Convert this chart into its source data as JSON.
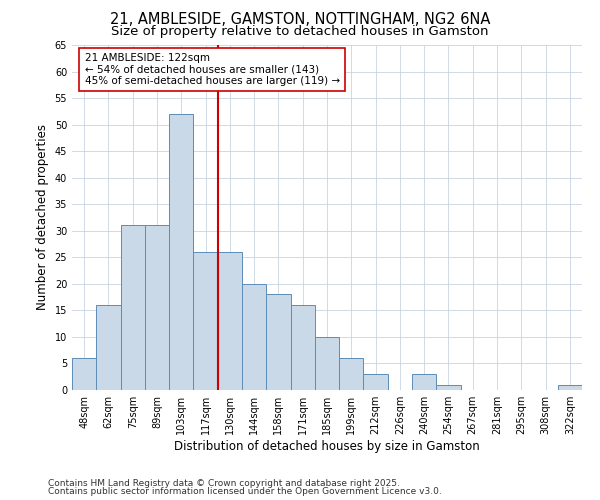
{
  "title1": "21, AMBLESIDE, GAMSTON, NOTTINGHAM, NG2 6NA",
  "title2": "Size of property relative to detached houses in Gamston",
  "xlabel": "Distribution of detached houses by size in Gamston",
  "ylabel": "Number of detached properties",
  "categories": [
    "48sqm",
    "62sqm",
    "75sqm",
    "89sqm",
    "103sqm",
    "117sqm",
    "130sqm",
    "144sqm",
    "158sqm",
    "171sqm",
    "185sqm",
    "199sqm",
    "212sqm",
    "226sqm",
    "240sqm",
    "254sqm",
    "267sqm",
    "281sqm",
    "295sqm",
    "308sqm",
    "322sqm"
  ],
  "values": [
    6,
    16,
    31,
    31,
    52,
    26,
    26,
    20,
    18,
    16,
    10,
    6,
    3,
    0,
    3,
    1,
    0,
    0,
    0,
    0,
    1
  ],
  "bar_color": "#c9d9e8",
  "bar_edge_color": "#5b8db8",
  "vline_x": 5.5,
  "vline_color": "#cc0000",
  "annotation_line1": "21 AMBLESIDE: 122sqm",
  "annotation_line2": "← 54% of detached houses are smaller (143)",
  "annotation_line3": "45% of semi-detached houses are larger (119) →",
  "annotation_box_color": "#ffffff",
  "annotation_box_edge": "#cc0000",
  "ylim": [
    0,
    65
  ],
  "yticks": [
    0,
    5,
    10,
    15,
    20,
    25,
    30,
    35,
    40,
    45,
    50,
    55,
    60,
    65
  ],
  "background_color": "#ffffff",
  "grid_color": "#c8d4e0",
  "footer1": "Contains HM Land Registry data © Crown copyright and database right 2025.",
  "footer2": "Contains public sector information licensed under the Open Government Licence v3.0.",
  "title_fontsize": 10.5,
  "subtitle_fontsize": 9.5,
  "axis_label_fontsize": 8.5,
  "tick_fontsize": 7,
  "annotation_fontsize": 7.5,
  "footer_fontsize": 6.5
}
